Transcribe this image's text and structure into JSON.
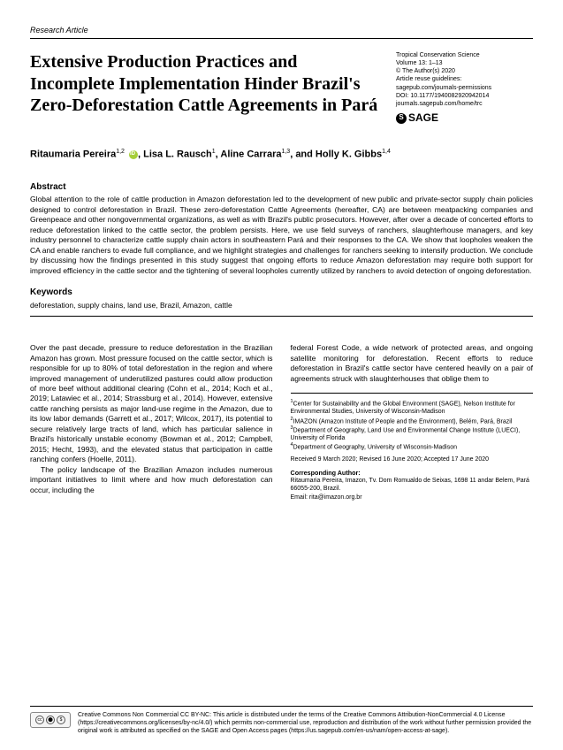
{
  "article_type": "Research Article",
  "title": "Extensive Production Practices and Incomplete Implementation Hinder Brazil's Zero-Deforestation Cattle Agreements in Pará",
  "journal_meta": {
    "name": "Tropical Conservation Science",
    "volume": "Volume 13: 1–13",
    "copyright": "© The Author(s) 2020",
    "reuse": "Article reuse guidelines:",
    "reuse_url": "sagepub.com/journals-permissions",
    "doi": "DOI: 10.1177/1940082920942014",
    "journal_url": "journals.sagepub.com/home/trc",
    "publisher": "SAGE"
  },
  "authors_html": "Ritaumaria Pereira<sup>1,2</sup> <span class='orcid'></span>, Lisa L. Rausch<sup>1</sup>, Aline Carrara<sup>1,3</sup>, and Holly K. Gibbs<sup>1,4</sup>",
  "abstract_heading": "Abstract",
  "abstract": "Global attention to the role of cattle production in Amazon deforestation led to the development of new public and private-sector supply chain policies designed to control deforestation in Brazil. These zero-deforestation Cattle Agreements (hereafter, CA) are between meatpacking companies and Greenpeace and other nongovernmental organizations, as well as with Brazil's public prosecutors. However, after over a decade of concerted efforts to reduce deforestation linked to the cattle sector, the problem persists. Here, we use field surveys of ranchers, slaughterhouse managers, and key industry personnel to characterize cattle supply chain actors in southeastern Pará and their responses to the CA. We show that loopholes weaken the CA and enable ranchers to evade full compliance, and we highlight strategies and challenges for ranchers seeking to intensify production. We conclude by discussing how the findings presented in this study suggest that ongoing efforts to reduce Amazon deforestation may require both support for improved efficiency in the cattle sector and the tightening of several loopholes currently utilized by ranchers to avoid detection of ongoing deforestation.",
  "keywords_heading": "Keywords",
  "keywords": "deforestation, supply chains, land use, Brazil, Amazon, cattle",
  "body": {
    "col1_p1": "Over the past decade, pressure to reduce deforestation in the Brazilian Amazon has grown. Most pressure focused on the cattle sector, which is responsible for up to 80% of total deforestation in the region and where improved management of underutilized pastures could allow production of more beef without additional clearing (Cohn et al., 2014; Koch et al., 2019; Latawiec et al., 2014; Strassburg et al., 2014). However, extensive cattle ranching persists as major land-use regime in the Amazon, due to its low labor demands (Garrett et al., 2017; Wilcox, 2017), its potential to secure relatively large tracts of land, which has particular salience in Brazil's historically unstable economy (Bowman et al., 2012; Campbell, 2015; Hecht, 1993), and the elevated status that participation in cattle ranching confers (Hoelle, 2011).",
    "col1_p2": "The policy landscape of the Brazilian Amazon includes numerous important initiatives to limit where and how much deforestation can occur, including the",
    "col2_p1": "federal Forest Code, a wide network of protected areas, and ongoing satellite monitoring for deforestation. Recent efforts to reduce deforestation in Brazil's cattle sector have centered heavily on a pair of agreements struck with slaughterhouses that oblige them to"
  },
  "affiliations": {
    "a1": "Center for Sustainability and the Global Environment (SAGE), Nelson Institute for Environmental Studies, University of Wisconsin-Madison",
    "a2": "IMAZON (Amazon Institute of People and the Environment), Belém, Pará, Brazil",
    "a3": "Department of Geography, Land Use and Environmental Change Institute (LUECI), University of Florida",
    "a4": "Department of Geography, University of Wisconsin-Madison",
    "dates": "Received 9 March 2020; Revised 16 June 2020; Accepted 17 June 2020",
    "corr_heading": "Corresponding Author:",
    "corr_text": "Ritaumaria Pereira, Imazon, Tv. Dom Romualdo de Seixas, 1698 11 andar Belem, Pará 66055-200, Brazil.",
    "corr_email": "Email: rita@imazon.org.br"
  },
  "footer": {
    "text": "Creative Commons Non Commercial CC BY-NC: This article is distributed under the terms of the Creative Commons Attribution-NonCommercial 4.0 License (https://creativecommons.org/licenses/by-nc/4.0/) which permits non-commercial use, reproduction and distribution of the work without further permission provided the original work is attributed as specified on the SAGE and Open Access pages (https://us.sagepub.com/en-us/nam/open-access-at-sage)."
  }
}
